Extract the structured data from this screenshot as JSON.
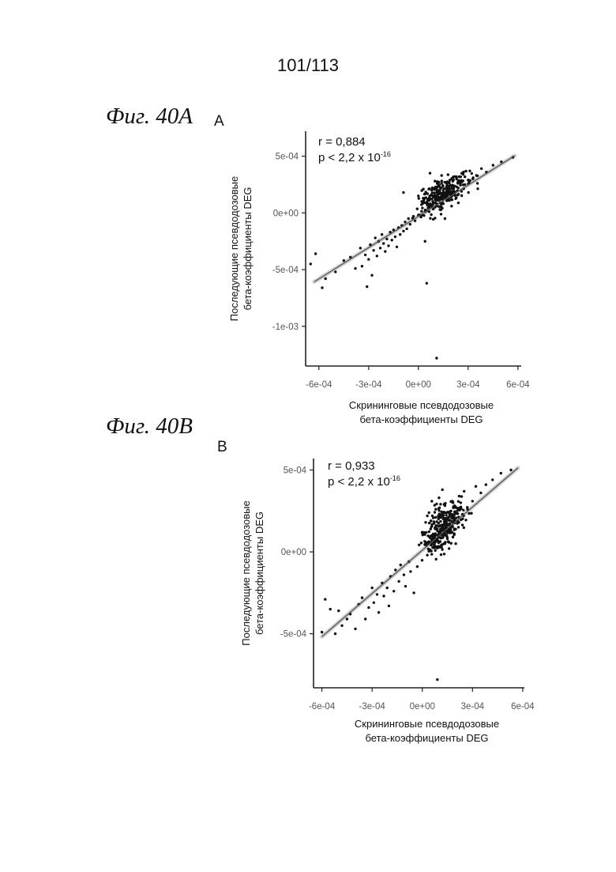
{
  "page_number": "101/113",
  "figures": [
    {
      "caption": "Фиг. 40А",
      "letter": "A"
    },
    {
      "caption": "Фиг. 40В",
      "letter": "B"
    }
  ],
  "chart_data": [
    {
      "type": "scatter",
      "panel": "A",
      "xlabel": "Скрининговые псевдодозовые бета-коэффициенты DEG",
      "ylabel": "Последующие псевдодозовые бета-коэффициенты DEG",
      "xlabel_lines": [
        "Скрининговые псевдодозовые",
        "бета-коэффициенты DEG"
      ],
      "ylabel_lines": [
        "Последующие псевдодозовые",
        "бета-коэффициенты DEG"
      ],
      "xticks": [
        -0.0006,
        -0.0003,
        0,
        0.0003,
        0.0006
      ],
      "xtick_labels": [
        "-6e-04",
        "-3e-04",
        "0e+00",
        "3e-04",
        "6e-04"
      ],
      "yticks": [
        0.0005,
        0,
        -0.0005,
        -0.001
      ],
      "ytick_labels": [
        "5e-04",
        "0e+00",
        "-5e-04",
        "-1e-03"
      ],
      "xlim": [
        -0.00068,
        0.00062
      ],
      "ylim": [
        -0.00135,
        0.00072
      ],
      "annotation_r": "r = 0,884",
      "annotation_p_base": "p < 2,2 x 10",
      "annotation_p_exp": "-16",
      "fit": {
        "slope": 0.92,
        "intercept": -3e-05
      },
      "points": [
        [
          -0.00065,
          -0.00045
        ],
        [
          -0.00062,
          -0.00036
        ],
        [
          -0.00058,
          -0.00066
        ],
        [
          -0.00056,
          -0.00058
        ],
        [
          -0.0005,
          -0.00052
        ],
        [
          -0.00045,
          -0.00042
        ],
        [
          -0.00041,
          -0.00039
        ],
        [
          -0.00038,
          -0.00049
        ],
        [
          -0.00035,
          -0.00031
        ],
        [
          -0.00034,
          -0.00047
        ],
        [
          -0.00032,
          -0.00037
        ],
        [
          -0.00031,
          -0.00065
        ],
        [
          -0.0003,
          -0.00041
        ],
        [
          -0.00029,
          -0.00028
        ],
        [
          -0.00028,
          -0.00055
        ],
        [
          -0.00027,
          -0.00033
        ],
        [
          -0.00026,
          -0.00022
        ],
        [
          -0.00025,
          -0.00038
        ],
        [
          -0.00024,
          -0.00025
        ],
        [
          -0.00023,
          -0.00031
        ],
        [
          -0.00022,
          -0.00019
        ],
        [
          -0.00021,
          -0.00027
        ],
        [
          -0.0002,
          -0.00034
        ],
        [
          -0.00019,
          -0.00023
        ],
        [
          -0.00018,
          -0.00029
        ],
        [
          -0.00017,
          -0.00017
        ],
        [
          -0.00016,
          -0.00024
        ],
        [
          -0.00015,
          -0.00015
        ],
        [
          -0.00014,
          -0.00021
        ],
        [
          -0.00013,
          -0.0003
        ],
        [
          -0.00012,
          -0.00013
        ],
        [
          -0.00011,
          -0.00019
        ],
        [
          -0.0001,
          -0.00011
        ],
        [
          -9e-05,
          -0.00016
        ],
        [
          -8e-05,
          -8e-05
        ],
        [
          -7e-05,
          -0.00014
        ],
        [
          -6e-05,
          -5e-05
        ],
        [
          -5e-05,
          -0.0001
        ],
        [
          -3e-05,
          -3e-05
        ],
        [
          -2e-05,
          -7e-05
        ],
        [
          0,
          0.00015
        ],
        [
          2e-05,
          0.0001
        ],
        [
          4e-05,
          1e-05
        ],
        [
          5e-05,
          0.00017
        ],
        [
          6e-05,
          0.00012
        ],
        [
          7e-05,
          8e-05
        ],
        [
          8e-05,
          0.0002
        ],
        [
          9e-05,
          0.00014
        ],
        [
          0.0001,
          5e-05
        ],
        [
          0.00011,
          0.00022
        ],
        [
          0.00012,
          0.00011
        ],
        [
          0.00013,
          0.00018
        ],
        [
          0.00014,
          0.00026
        ],
        [
          0.00015,
          8e-05
        ],
        [
          0.00016,
          0.00015
        ],
        [
          0.00017,
          0.00021
        ],
        [
          0.00018,
          0.00012
        ],
        [
          0.00019,
          0.00029
        ],
        [
          0.0002,
          0.00019
        ],
        [
          0.00021,
          0.00024
        ],
        [
          0.00022,
          0.00016
        ],
        [
          0.00023,
          0.00031
        ],
        [
          0.00024,
          0.00022
        ],
        [
          0.00025,
          0.00027
        ],
        [
          0.00026,
          0.00019
        ],
        [
          0.00027,
          0.00034
        ],
        [
          0.00028,
          0.00025
        ],
        [
          0.0003,
          0.00029
        ],
        [
          0.00031,
          0.00037
        ],
        [
          0.00033,
          0.00031
        ],
        [
          0.00035,
          0.00033
        ],
        [
          0.00038,
          0.00039
        ],
        [
          0.00041,
          0.00036
        ],
        [
          0.00045,
          0.00042
        ],
        [
          0.0005,
          0.00045
        ],
        [
          0.00057,
          0.00049
        ],
        [
          4e-05,
          -0.00025
        ],
        [
          5e-05,
          -0.00062
        ],
        [
          0.00011,
          -0.00128
        ],
        [
          0.00016,
          -5e-05
        ],
        [
          7e-05,
          0.00035
        ],
        [
          0.0001,
          0.00028
        ],
        [
          0.00013,
          3e-05
        ],
        [
          0.0002,
          6e-05
        ],
        [
          3e-05,
          0.00021
        ],
        [
          0.00017,
          0.00027
        ],
        [
          -9e-05,
          0.00018
        ],
        [
          0.00014,
          0.00033
        ]
      ],
      "cluster": {
        "cx": 0.00014,
        "cy": 0.00016,
        "sx": 7e-05,
        "sy": 8e-05,
        "rho": 0.6,
        "n": 260,
        "seed": 7
      }
    },
    {
      "type": "scatter",
      "panel": "B",
      "xlabel": "Скрининговые псевдодозовые бета-коэффициенты DEG",
      "ylabel": "Последующие псевдодозовые бета-коэффициенты DEG",
      "xlabel_lines": [
        "Скрининговые псевдодозовые",
        "бета-коэффициенты DEG"
      ],
      "ylabel_lines": [
        "Последующие псевдодозовые",
        "бета-коэффициенты DEG"
      ],
      "xticks": [
        -0.0006,
        -0.0003,
        0,
        0.0003,
        0.0006
      ],
      "xtick_labels": [
        "-6e-04",
        "-3e-04",
        "0e+00",
        "3e-04",
        "6e-04"
      ],
      "yticks": [
        0.0005,
        0,
        -0.0005
      ],
      "ytick_labels": [
        "5e-04",
        "0e+00",
        "-5e-04"
      ],
      "xlim": [
        -0.00065,
        0.00061
      ],
      "ylim": [
        -0.00083,
        0.00057
      ],
      "annotation_r": "r = 0,933",
      "annotation_p_base": "p < 2,2 x 10",
      "annotation_p_exp": "-16",
      "fit": {
        "slope": 0.88,
        "intercept": 1e-05
      },
      "points": [
        [
          -0.0006,
          -0.00049
        ],
        [
          -0.00058,
          -0.00029
        ],
        [
          -0.00055,
          -0.00035
        ],
        [
          -0.00052,
          -0.0005
        ],
        [
          -0.0005,
          -0.00036
        ],
        [
          -0.00048,
          -0.00045
        ],
        [
          -0.00045,
          -0.00041
        ],
        [
          -0.00043,
          -0.00038
        ],
        [
          -0.0004,
          -0.00047
        ],
        [
          -0.00038,
          -0.00032
        ],
        [
          -0.00036,
          -0.00028
        ],
        [
          -0.00034,
          -0.00041
        ],
        [
          -0.00032,
          -0.00034
        ],
        [
          -0.0003,
          -0.00022
        ],
        [
          -0.00029,
          -0.00031
        ],
        [
          -0.00027,
          -0.00026
        ],
        [
          -0.00026,
          -0.00037
        ],
        [
          -0.00024,
          -0.00019
        ],
        [
          -0.00023,
          -0.00027
        ],
        [
          -0.00021,
          -0.00022
        ],
        [
          -0.0002,
          -0.00033
        ],
        [
          -0.00019,
          -0.00015
        ],
        [
          -0.00017,
          -0.00024
        ],
        [
          -0.00016,
          -0.00011
        ],
        [
          -0.00014,
          -0.00018
        ],
        [
          -0.00013,
          -8e-05
        ],
        [
          -0.00011,
          -0.00014
        ],
        [
          -0.0001,
          -0.00021
        ],
        [
          -8e-05,
          -6e-05
        ],
        [
          -7e-05,
          -0.00012
        ],
        [
          -5e-05,
          -0.00025
        ],
        [
          -3e-05,
          -9e-05
        ],
        [
          0,
          0.00012
        ],
        [
          2e-05,
          0.00018
        ],
        [
          3e-05,
          5e-05
        ],
        [
          5e-05,
          0.00014
        ],
        [
          6e-05,
          0.00022
        ],
        [
          7e-05,
          0.0001
        ],
        [
          8e-05,
          0.00026
        ],
        [
          9e-05,
          0.00016
        ],
        [
          0.0001,
          3e-05
        ],
        [
          0.00011,
          0.00021
        ],
        [
          0.00012,
          0.00013
        ],
        [
          0.00013,
          0.00029
        ],
        [
          0.00014,
          0.00018
        ],
        [
          0.00015,
          8e-05
        ],
        [
          0.00016,
          0.00024
        ],
        [
          0.00017,
          0.00015
        ],
        [
          0.00018,
          0.00031
        ],
        [
          0.00019,
          0.00011
        ],
        [
          0.0002,
          0.00027
        ],
        [
          0.00021,
          0.00019
        ],
        [
          0.00022,
          0.00034
        ],
        [
          0.00024,
          0.00023
        ],
        [
          0.00025,
          0.00037
        ],
        [
          0.00027,
          0.00026
        ],
        [
          0.0003,
          0.00031
        ],
        [
          0.00032,
          0.0004
        ],
        [
          0.00035,
          0.00036
        ],
        [
          0.00038,
          0.00041
        ],
        [
          0.00042,
          0.00044
        ],
        [
          0.00047,
          0.00048
        ],
        [
          0.00053,
          0.0005
        ],
        [
          9e-05,
          -0.00078
        ],
        [
          3e-05,
          -2e-05
        ],
        [
          6e-05,
          7e-05
        ],
        [
          0.0001,
          0.00033
        ],
        [
          0.00016,
          2e-05
        ],
        [
          0.0002,
          5e-05
        ],
        [
          0.00012,
          0.00038
        ],
        [
          4e-05,
          0.00024
        ]
      ],
      "cluster": {
        "cx": 0.00013,
        "cy": 0.00015,
        "sx": 6e-05,
        "sy": 8e-05,
        "rho": 0.55,
        "n": 300,
        "seed": 19
      }
    }
  ]
}
